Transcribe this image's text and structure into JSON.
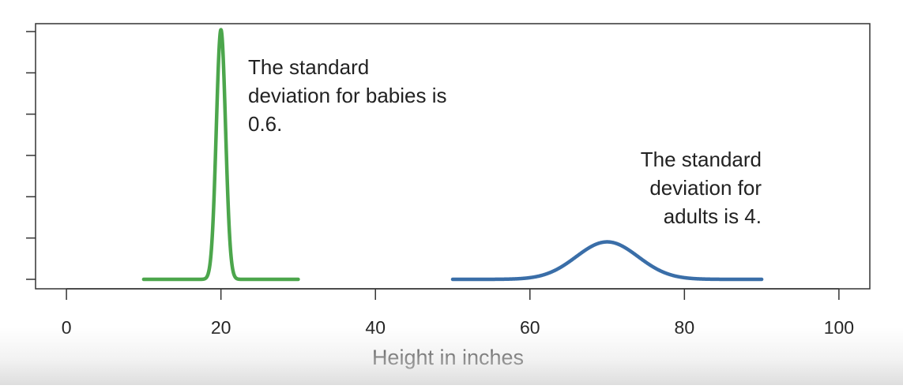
{
  "chart_data": {
    "type": "line",
    "title": "",
    "xlabel": "Height in inches",
    "ylabel": "",
    "xlim": [
      -4,
      104
    ],
    "ylim": [
      0,
      0.66
    ],
    "x_ticks": [
      0,
      20,
      40,
      60,
      80,
      100
    ],
    "x_tick_labels": [
      "0",
      "20",
      "40",
      "60",
      "80",
      "100"
    ],
    "y_tick_count": 7,
    "grid": false,
    "series": [
      {
        "mean": 20,
        "sd": 0.6,
        "x_range": [
          10,
          30
        ],
        "color": "#4ca64c"
      },
      {
        "mean": 70,
        "sd": 4,
        "x_range": [
          50,
          90
        ],
        "color": "#3a6ea8"
      }
    ],
    "annotations": [
      {
        "lines": [
          "The standard",
          "deviation for babies is",
          "0.6."
        ]
      },
      {
        "lines": [
          "The standard",
          "deviation for",
          "adults is 4."
        ]
      }
    ]
  }
}
